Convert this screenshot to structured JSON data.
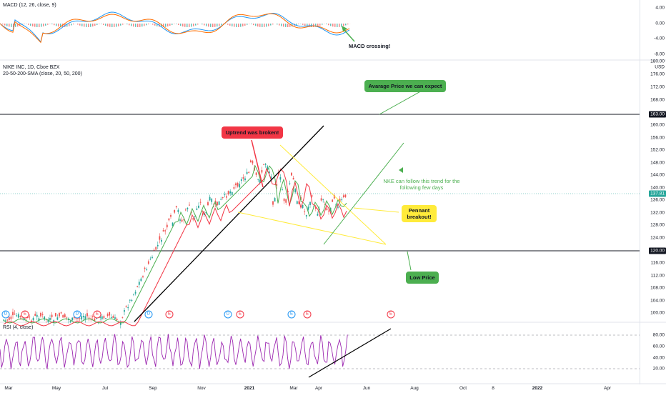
{
  "macd_pane": {
    "label": "MACD (12, 26, close, 9)",
    "ticks": [
      "4.00",
      "0.00",
      "-4.00",
      "-8.00"
    ],
    "note": "MACD crossing!"
  },
  "price_pane": {
    "symbol_line": "NIKE INC, 1D, Cboe BZX",
    "sma_line": "20-50-200-SMA (close, 20, 50, 200)",
    "currency": "USD",
    "ticks": [
      "180.00",
      "176.00",
      "172.00",
      "168.00",
      "160.00",
      "156.00",
      "152.00",
      "148.00",
      "144.00",
      "140.00",
      "136.00",
      "132.00",
      "128.00",
      "124.00",
      "116.00",
      "112.00",
      "108.00",
      "104.00",
      "100.00"
    ],
    "resistance_tag": "163.00",
    "support_tag": "120.00",
    "current_tag": "137.81",
    "notes": {
      "average": "Avarage Price we can expect",
      "uptrend": "Uptrend was broken!",
      "follow": "NKE can follow this trend for the following few days",
      "pennant": "Pennant breakout!",
      "low": "Low Price"
    },
    "events": [
      "D",
      "E",
      "D",
      "E",
      "D",
      "E",
      "D",
      "E",
      "E"
    ]
  },
  "rsi_pane": {
    "label": "RSI (4, close)",
    "ticks": [
      "80.00",
      "60.00",
      "40.00",
      "20.00"
    ]
  },
  "time_axis": [
    "Mar",
    "May",
    "Jul",
    "Sep",
    "Nov",
    "2021",
    "Mar",
    "Apr",
    "Jun",
    "Aug",
    "Oct",
    "8",
    "2022",
    "Apr"
  ],
  "colors": {
    "green_note": "#4caf50",
    "red_note": "#f23645",
    "yellow_note": "#ffeb3b",
    "rsi_line": "#9c27b0",
    "macd_line": "#2196f3",
    "signal_line": "#ff6d00"
  }
}
